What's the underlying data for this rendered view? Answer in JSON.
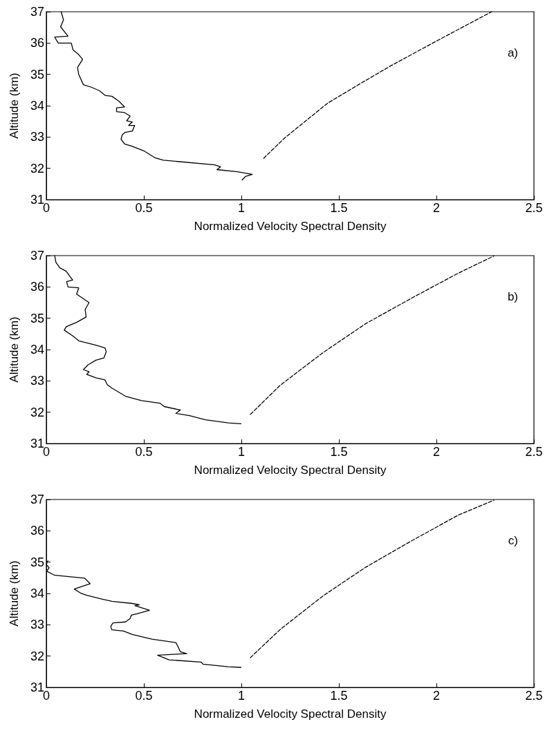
{
  "chart_data": [
    {
      "type": "line",
      "xlabel": "Normalized Velocity Spectral Density",
      "ylabel": "Altitude (km)",
      "annotations": [
        "a)"
      ],
      "xlim": [
        0,
        2.5
      ],
      "xticks": [
        0,
        0.5,
        1,
        1.5,
        2,
        2.5
      ],
      "ylim": [
        31,
        37
      ],
      "yticks": [
        31,
        32,
        33,
        34,
        35,
        36,
        37
      ],
      "marker": "none",
      "series": [
        {
          "color": "#000000",
          "line_style": "solid",
          "x": [
            0.076,
            0.088,
            0.073,
            0.111,
            0.043,
            0.061,
            0.128,
            0.137,
            0.166,
            0.186,
            0.16,
            0.166,
            0.19,
            0.231,
            0.272,
            0.301,
            0.336,
            0.371,
            0.401,
            0.36,
            0.36,
            0.401,
            0.43,
            0.412,
            0.441,
            0.422,
            0.453,
            0.441,
            0.404,
            0.389,
            0.383,
            0.401,
            0.441,
            0.5,
            0.559,
            0.6,
            0.863,
            0.893,
            0.875,
            0.98,
            1.056,
            1.021,
            1.004
          ],
          "values": [
            37,
            36.74,
            36.52,
            36.22,
            36.19,
            36.0,
            36.0,
            35.78,
            35.63,
            35.48,
            35.22,
            35.0,
            34.67,
            34.59,
            34.48,
            34.33,
            34.3,
            34.15,
            33.96,
            33.93,
            33.81,
            33.78,
            33.67,
            33.52,
            33.48,
            33.37,
            33.37,
            33.19,
            33.15,
            33.07,
            32.93,
            32.78,
            32.7,
            32.56,
            32.33,
            32.26,
            32.11,
            32.05,
            31.96,
            31.89,
            31.81,
            31.74,
            31.63
          ]
        },
        {
          "color": "#000000",
          "line_style": "dashed",
          "x": [
            1.114,
            1.222,
            1.442,
            1.603,
            1.765,
            1.996,
            2.283
          ],
          "values": [
            32.32,
            32.97,
            34.08,
            34.68,
            35.27,
            36.05,
            37
          ]
        }
      ]
    },
    {
      "type": "line",
      "xlabel": "Normalized Velocity Spectral Density",
      "ylabel": "Altitude (km)",
      "annotations": [
        "b)"
      ],
      "xlim": [
        0,
        2.5
      ],
      "xticks": [
        0,
        0.5,
        1,
        1.5,
        2,
        2.5
      ],
      "ylim": [
        31,
        37
      ],
      "yticks": [
        31,
        32,
        33,
        34,
        35,
        36,
        37
      ],
      "marker": "none",
      "series": [
        {
          "color": "#000000",
          "line_style": "solid",
          "x": [
            0.043,
            0.049,
            0.069,
            0.102,
            0.119,
            0.135,
            0.104,
            0.111,
            0.166,
            0.155,
            0.184,
            0.219,
            0.199,
            0.204,
            0.155,
            0.102,
            0.092,
            0.137,
            0.166,
            0.254,
            0.301,
            0.307,
            0.295,
            0.254,
            0.213,
            0.19,
            0.219,
            0.207,
            0.254,
            0.301,
            0.312,
            0.336,
            0.406,
            0.488,
            0.582,
            0.605,
            0.687,
            0.664,
            0.734,
            0.816,
            0.933,
            0.998
          ],
          "values": [
            37,
            36.79,
            36.61,
            36.5,
            36.35,
            36.22,
            36.17,
            36.0,
            35.97,
            35.77,
            35.65,
            35.5,
            35.28,
            35.04,
            34.87,
            34.73,
            34.62,
            34.43,
            34.28,
            34.14,
            34.05,
            33.93,
            33.73,
            33.66,
            33.51,
            33.36,
            33.29,
            33.21,
            33.1,
            33.03,
            32.88,
            32.77,
            32.51,
            32.37,
            32.29,
            32.18,
            32.07,
            31.96,
            31.89,
            31.76,
            31.66,
            31.63
          ]
        },
        {
          "color": "#000000",
          "line_style": "dashed",
          "x": [
            1.046,
            1.199,
            1.418,
            1.638,
            1.881,
            2.112,
            2.295
          ],
          "values": [
            31.93,
            32.86,
            33.9,
            34.83,
            35.67,
            36.44,
            36.99
          ]
        }
      ]
    },
    {
      "type": "line",
      "xlabel": "Normalized Velocity Spectral Density",
      "ylabel": "Altitude (km)",
      "annotations": [
        "c)"
      ],
      "xlim": [
        0,
        2.5
      ],
      "xticks": [
        0,
        0.5,
        1,
        1.5,
        2,
        2.5
      ],
      "ylim": [
        31,
        37
      ],
      "yticks": [
        31,
        32,
        33,
        34,
        35,
        36,
        37
      ],
      "marker": "none",
      "series": [
        {
          "color": "#000000",
          "line_style": "solid",
          "x": [
            0.008,
            0.0,
            0.014,
            0.002,
            0.043,
            0.196,
            0.225,
            0.143,
            0.176,
            0.207,
            0.277,
            0.336,
            0.441,
            0.477,
            0.454,
            0.529,
            0.465,
            0.436,
            0.43,
            0.406,
            0.342,
            0.33,
            0.336,
            0.395,
            0.441,
            0.541,
            0.664,
            0.676,
            0.687,
            0.72,
            0.57,
            0.629,
            0.793,
            0.804,
            0.933,
            0.998
          ],
          "values": [
            35.04,
            34.93,
            34.82,
            34.71,
            34.58,
            34.49,
            34.31,
            34.14,
            34.01,
            33.94,
            33.83,
            33.75,
            33.68,
            33.64,
            33.61,
            33.46,
            33.35,
            33.31,
            33.2,
            33.09,
            33.06,
            32.95,
            32.84,
            32.8,
            32.69,
            32.54,
            32.43,
            32.29,
            32.14,
            32.08,
            32.03,
            31.88,
            31.81,
            31.74,
            31.66,
            31.64
          ]
        },
        {
          "color": "#000000",
          "line_style": "dashed",
          "x": [
            1.046,
            1.199,
            1.418,
            1.638,
            1.881,
            2.112,
            2.295
          ],
          "values": [
            31.95,
            32.85,
            33.92,
            34.84,
            35.71,
            36.5,
            36.98
          ]
        }
      ]
    }
  ]
}
